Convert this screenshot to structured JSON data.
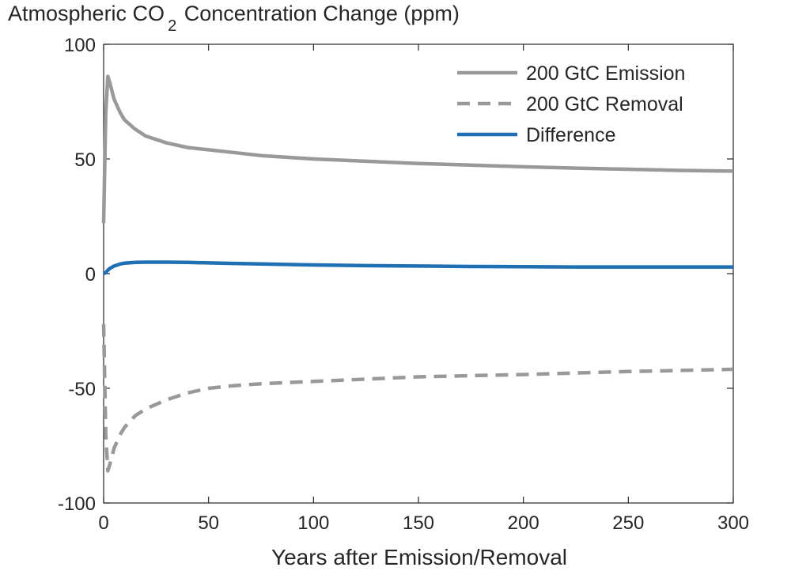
{
  "chart_data": {
    "type": "line",
    "title_main": "Atmospheric CO",
    "title_subscript": "2",
    "title_rest": " Concentration Change (ppm)",
    "xlabel": "Years after Emission/Removal",
    "ylabel": "",
    "xlim": [
      0,
      300
    ],
    "ylim": [
      -100,
      100
    ],
    "xticks": [
      0,
      50,
      100,
      150,
      200,
      250,
      300
    ],
    "yticks": [
      -100,
      -50,
      0,
      50,
      100
    ],
    "xtick_labels": [
      "0",
      "50",
      "100",
      "150",
      "200",
      "250",
      "300"
    ],
    "ytick_labels": [
      "-100",
      "-50",
      "0",
      "50",
      "100"
    ],
    "grid": false,
    "legend_position": "top-right",
    "series": [
      {
        "name": "200 GtC Emission",
        "color": "#999999",
        "style": "solid",
        "x": [
          0,
          1,
          2,
          3,
          5,
          8,
          10,
          15,
          20,
          30,
          40,
          50,
          60,
          75,
          100,
          125,
          150,
          175,
          200,
          225,
          250,
          275,
          300
        ],
        "values": [
          22,
          70,
          86,
          83,
          76,
          70,
          67,
          63,
          60,
          57,
          55,
          54,
          53,
          51.5,
          50,
          49,
          48,
          47.3,
          46.6,
          46,
          45.5,
          45,
          44.7
        ]
      },
      {
        "name": "200 GtC Removal",
        "color": "#999999",
        "style": "dashed",
        "x": [
          0,
          1,
          2,
          3,
          5,
          8,
          10,
          15,
          20,
          30,
          40,
          50,
          60,
          75,
          100,
          125,
          150,
          175,
          200,
          225,
          250,
          275,
          300
        ],
        "values": [
          -22,
          -70,
          -86,
          -83,
          -76,
          -70,
          -67,
          -62,
          -59,
          -55,
          -52,
          -50,
          -49,
          -48,
          -47,
          -46,
          -45,
          -44.5,
          -44,
          -43.3,
          -42.7,
          -42.2,
          -41.7
        ]
      },
      {
        "name": "Difference",
        "color": "#1f6fb4",
        "style": "solid",
        "x": [
          0,
          1,
          2,
          3,
          5,
          8,
          10,
          15,
          20,
          30,
          40,
          50,
          60,
          75,
          100,
          125,
          150,
          175,
          200,
          225,
          250,
          275,
          300
        ],
        "values": [
          0,
          0.5,
          1.5,
          2.3,
          3.3,
          4.2,
          4.6,
          4.9,
          5.0,
          5.0,
          4.9,
          4.7,
          4.5,
          4.2,
          3.8,
          3.5,
          3.3,
          3.1,
          3.0,
          2.9,
          2.9,
          2.9,
          2.9
        ]
      }
    ]
  }
}
